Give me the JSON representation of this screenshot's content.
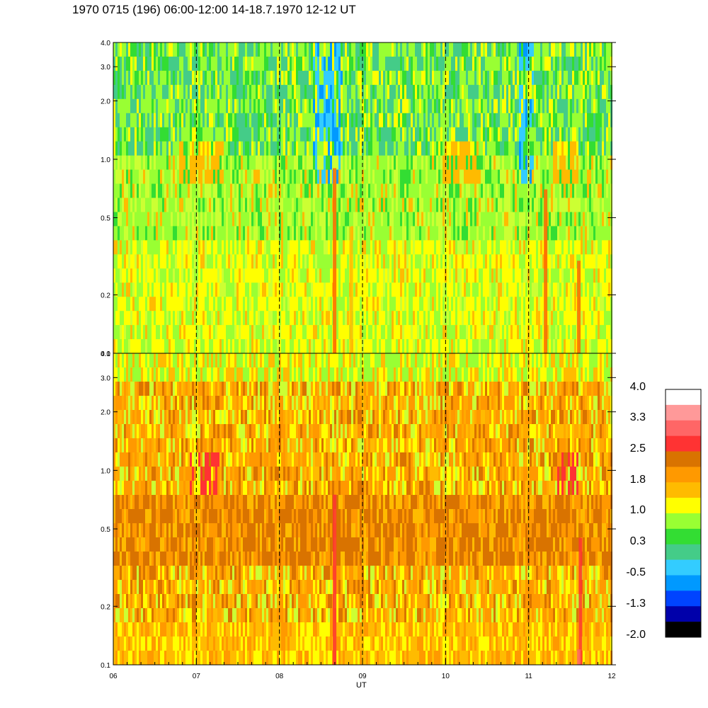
{
  "title": "1970 0715 (196) 06:00-12:00 14-18.7.1970  12-12 UT",
  "colorbar": {
    "labels": [
      "4.0",
      "3.3",
      "2.5",
      "1.8",
      "1.0",
      "0.3",
      "-0.5",
      "-1.3",
      "-2.0"
    ],
    "colors": [
      "#ffffff",
      "#ff9999",
      "#ff6666",
      "#ff3333",
      "#d97300",
      "#ff9900",
      "#ffbb00",
      "#ffff00",
      "#99ff33",
      "#33dd33",
      "#44cc88",
      "#33ccff",
      "#0099ff",
      "#0044ff",
      "#0000aa",
      "#000000"
    ]
  },
  "chart_data": [
    {
      "type": "heatmap",
      "panel": "upper",
      "title": "",
      "xlabel": "",
      "ylabel": "",
      "x_ticks": [
        "06",
        "07",
        "08",
        "09",
        "10",
        "11",
        "12"
      ],
      "y_ticks": [
        "0.1",
        "0.2",
        "0.5",
        "1.0",
        "2.0",
        "3.0",
        "4.0"
      ],
      "y_scale": "log",
      "ylim": [
        0.1,
        4.0
      ],
      "xlim": [
        6,
        12
      ],
      "dashed_vlines": [
        7,
        8,
        9,
        10,
        11
      ],
      "dominant_levels": "green/yellow, blue patches near 08:30 and 11:00 above 1.0, orange near 1.0"
    },
    {
      "type": "heatmap",
      "panel": "lower",
      "title": "",
      "xlabel": "UT",
      "ylabel": "",
      "x_ticks": [
        "06",
        "07",
        "08",
        "09",
        "10",
        "11",
        "12"
      ],
      "y_ticks": [
        "0.1",
        "0.2",
        "0.5",
        "1.0",
        "2.0",
        "3.0",
        "4.0"
      ],
      "y_scale": "log",
      "ylim": [
        0.1,
        4.0
      ],
      "xlim": [
        6,
        12
      ],
      "dashed_vlines": [
        7,
        8,
        9,
        10,
        11
      ],
      "dominant_levels": "orange/yellow, dark orange band between 0.3 and 0.6, red near 11:35"
    }
  ],
  "xlabel": "UT"
}
